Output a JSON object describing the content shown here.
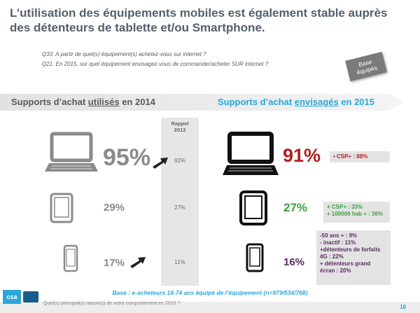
{
  "title": "L’utilisation des équipements mobiles est également stable auprès des détenteurs de tablette et/ou Smartphone.",
  "questions": {
    "q1": "Q33. A partir de quel(s) équipement(s) achetez-vous sur internet ?",
    "q2": "Q21. En 2015, sur quel équipement envisagez-vous de commander/acheter SUR internet ?"
  },
  "base_tag": {
    "line1": "Base",
    "line2": "équipés"
  },
  "headers": {
    "left_prefix": "Supports d’achat ",
    "left_emph": "utilisés",
    "left_suffix": " en 2014",
    "right_prefix": "Supports d’achat ",
    "right_emph": "envisagés",
    "right_suffix": " en 2015"
  },
  "rappel": {
    "line1": "Rappel",
    "line2": "2013"
  },
  "chart_data": {
    "type": "table",
    "columns": [
      "Supports d’achat utilisés en 2014",
      "Rappel 2013",
      "Supports d’achat envisagés en 2015"
    ],
    "rows": [
      {
        "device": "laptop",
        "p2014": "95%",
        "p2013": "92%",
        "p2015": "91%"
      },
      {
        "device": "tablet",
        "p2014": "29%",
        "p2013": "27%",
        "p2015": "27%"
      },
      {
        "device": "smartphone",
        "p2014": "17%",
        "p2013": "11%",
        "p2015": "16%"
      }
    ]
  },
  "boxes": {
    "laptop": "• CSP+ : 88%",
    "tablet": [
      "+ CSP+ : 33%",
      "+ 100000 hab + : 36%"
    ],
    "phone": [
      "-50 ans + : 9%",
      "- inactif : 11%",
      "+détenteurs de forfaits",
      "4G : 22%",
      "+ détenteurs grand",
      "écran : 20%"
    ]
  },
  "base_note": "Base : e-acheteurs 18-74 ans équipé de l’équipement (n=979/534/768)",
  "footer_question": "Quel(s) principal(s) raison(s) de votre comportement en 2015 ?",
  "page_number": "18",
  "logo_text": "csa",
  "colors": {
    "title": "#55606b",
    "accent_blue": "#2aa7d7",
    "red": "#b01e22",
    "green": "#39a23b",
    "purple": "#5b2a62",
    "grey": "#8a8a8a"
  }
}
